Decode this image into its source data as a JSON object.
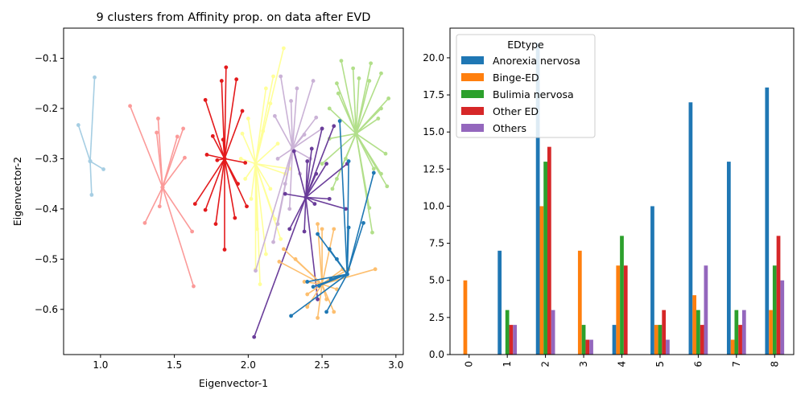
{
  "chart_data": [
    {
      "type": "scatter",
      "title": "9 clusters from Affinity prop. on data after EVD",
      "xlabel": "Eigenvector-1",
      "ylabel": "Eigenvector-2",
      "xlim": [
        0.75,
        3.05
      ],
      "ylim": [
        -0.69,
        -0.04
      ],
      "xticks": [
        1.0,
        1.5,
        2.0,
        2.5,
        3.0
      ],
      "xtick_labels": [
        "1.0",
        "1.5",
        "2.0",
        "2.5",
        "3.0"
      ],
      "yticks": [
        -0.1,
        -0.2,
        -0.3,
        -0.4,
        -0.5,
        -0.6
      ],
      "ytick_labels": [
        "−0.1",
        "−0.2",
        "−0.3",
        "−0.4",
        "−0.5",
        "−0.6"
      ],
      "grid": false,
      "clusters": [
        {
          "color": "#a6cee3",
          "center": [
            0.93,
            -0.305
          ],
          "points": [
            [
              0.85,
              -0.233
            ],
            [
              0.96,
              -0.138
            ],
            [
              1.02,
              -0.321
            ],
            [
              0.94,
              -0.372
            ]
          ]
        },
        {
          "color": "#fb9a99",
          "center": [
            1.42,
            -0.357
          ],
          "points": [
            [
              1.2,
              -0.195
            ],
            [
              1.39,
              -0.22
            ],
            [
              1.38,
              -0.248
            ],
            [
              1.52,
              -0.256
            ],
            [
              1.56,
              -0.24
            ],
            [
              1.57,
              -0.298
            ],
            [
              1.3,
              -0.428
            ],
            [
              1.4,
              -0.395
            ],
            [
              1.62,
              -0.445
            ],
            [
              1.63,
              -0.554
            ]
          ]
        },
        {
          "color": "#e31a1c",
          "center": [
            1.84,
            -0.3
          ],
          "points": [
            [
              1.71,
              -0.183
            ],
            [
              1.82,
              -0.145
            ],
            [
              1.85,
              -0.118
            ],
            [
              1.92,
              -0.142
            ],
            [
              1.96,
              -0.205
            ],
            [
              1.83,
              -0.262
            ],
            [
              1.76,
              -0.255
            ],
            [
              1.72,
              -0.292
            ],
            [
              1.79,
              -0.303
            ],
            [
              1.98,
              -0.308
            ],
            [
              1.64,
              -0.39
            ],
            [
              1.71,
              -0.402
            ],
            [
              1.78,
              -0.43
            ],
            [
              1.84,
              -0.481
            ],
            [
              1.91,
              -0.418
            ],
            [
              1.99,
              -0.395
            ],
            [
              1.93,
              -0.35
            ]
          ]
        },
        {
          "color": "#ffff99",
          "center": [
            2.05,
            -0.31
          ],
          "points": [
            [
              2.24,
              -0.08
            ],
            [
              2.17,
              -0.136
            ],
            [
              2.12,
              -0.16
            ],
            [
              2.15,
              -0.19
            ],
            [
              2.0,
              -0.22
            ],
            [
              2.1,
              -0.245
            ],
            [
              2.2,
              -0.27
            ],
            [
              1.95,
              -0.3
            ],
            [
              1.98,
              -0.34
            ],
            [
              2.25,
              -0.33
            ],
            [
              2.28,
              -0.32
            ],
            [
              2.02,
              -0.38
            ],
            [
              2.15,
              -0.36
            ],
            [
              2.18,
              -0.42
            ],
            [
              2.06,
              -0.44
            ],
            [
              2.12,
              -0.49
            ],
            [
              2.05,
              -0.52
            ],
            [
              2.08,
              -0.55
            ],
            [
              2.22,
              -0.46
            ],
            [
              1.96,
              -0.25
            ]
          ]
        },
        {
          "color": "#cab2d6",
          "center": [
            2.3,
            -0.28
          ],
          "points": [
            [
              2.22,
              -0.136
            ],
            [
              2.33,
              -0.16
            ],
            [
              2.44,
              -0.145
            ],
            [
              2.29,
              -0.185
            ],
            [
              2.46,
              -0.218
            ],
            [
              2.18,
              -0.215
            ],
            [
              2.38,
              -0.252
            ],
            [
              2.5,
              -0.24
            ],
            [
              2.2,
              -0.3
            ],
            [
              2.42,
              -0.3
            ],
            [
              2.25,
              -0.35
            ],
            [
              2.28,
              -0.4
            ],
            [
              2.2,
              -0.43
            ],
            [
              2.17,
              -0.466
            ],
            [
              2.05,
              -0.523
            ],
            [
              2.35,
              -0.33
            ]
          ]
        },
        {
          "color": "#b2df8a",
          "center": [
            2.73,
            -0.25
          ],
          "points": [
            [
              2.63,
              -0.105
            ],
            [
              2.71,
              -0.12
            ],
            [
              2.83,
              -0.11
            ],
            [
              2.82,
              -0.145
            ],
            [
              2.9,
              -0.13
            ],
            [
              2.6,
              -0.15
            ],
            [
              2.61,
              -0.17
            ],
            [
              2.95,
              -0.18
            ],
            [
              2.9,
              -0.2
            ],
            [
              2.55,
              -0.2
            ],
            [
              2.55,
              -0.26
            ],
            [
              2.93,
              -0.29
            ],
            [
              2.88,
              -0.22
            ],
            [
              2.5,
              -0.31
            ],
            [
              2.6,
              -0.34
            ],
            [
              2.85,
              -0.32
            ],
            [
              2.9,
              -0.33
            ],
            [
              2.94,
              -0.355
            ],
            [
              2.66,
              -0.3
            ],
            [
              2.82,
              -0.398
            ],
            [
              2.84,
              -0.447
            ],
            [
              2.57,
              -0.36
            ],
            [
              2.75,
              -0.14
            ]
          ]
        },
        {
          "color": "#6a3d9a",
          "center": [
            2.39,
            -0.377
          ],
          "points": [
            [
              2.31,
              -0.285
            ],
            [
              2.4,
              -0.305
            ],
            [
              2.43,
              -0.28
            ],
            [
              2.5,
              -0.24
            ],
            [
              2.58,
              -0.235
            ],
            [
              2.46,
              -0.33
            ],
            [
              2.53,
              -0.31
            ],
            [
              2.67,
              -0.31
            ],
            [
              2.28,
              -0.44
            ],
            [
              2.38,
              -0.445
            ],
            [
              2.45,
              -0.39
            ],
            [
              2.55,
              -0.38
            ],
            [
              2.66,
              -0.4
            ],
            [
              2.25,
              -0.37
            ],
            [
              2.47,
              -0.58
            ],
            [
              2.04,
              -0.655
            ]
          ]
        },
        {
          "color": "#fdbf6f",
          "center": [
            2.5,
            -0.55
          ],
          "points": [
            [
              2.24,
              -0.48
            ],
            [
              2.47,
              -0.43
            ],
            [
              2.5,
              -0.44
            ],
            [
              2.58,
              -0.44
            ],
            [
              2.32,
              -0.5
            ],
            [
              2.21,
              -0.505
            ],
            [
              2.64,
              -0.52
            ],
            [
              2.68,
              -0.52
            ],
            [
              2.86,
              -0.52
            ],
            [
              2.38,
              -0.545
            ],
            [
              2.4,
              -0.595
            ],
            [
              2.47,
              -0.617
            ],
            [
              2.58,
              -0.605
            ],
            [
              2.53,
              -0.58
            ],
            [
              2.4,
              -0.57
            ],
            [
              2.6,
              -0.56
            ]
          ]
        },
        {
          "color": "#1f78b4",
          "center": [
            2.67,
            -0.53
          ],
          "points": [
            [
              2.62,
              -0.225
            ],
            [
              2.68,
              -0.305
            ],
            [
              2.85,
              -0.328
            ],
            [
              2.78,
              -0.428
            ],
            [
              2.68,
              -0.437
            ],
            [
              2.47,
              -0.45
            ],
            [
              2.55,
              -0.48
            ],
            [
              2.29,
              -0.613
            ],
            [
              2.53,
              -0.605
            ],
            [
              2.44,
              -0.555
            ],
            [
              2.4,
              -0.545
            ],
            [
              2.48,
              -0.553
            ],
            [
              2.56,
              -0.54
            ],
            [
              2.6,
              -0.5
            ]
          ]
        }
      ]
    },
    {
      "type": "bar",
      "categories": [
        "0",
        "1",
        "2",
        "3",
        "4",
        "5",
        "6",
        "7",
        "8"
      ],
      "legend_title": "EDtype",
      "legend_placement": "top-left",
      "ylim": [
        0,
        22
      ],
      "yticks": [
        0.0,
        2.5,
        5.0,
        7.5,
        10.0,
        12.5,
        15.0,
        17.5,
        20.0
      ],
      "ytick_labels": [
        "0.0",
        "2.5",
        "5.0",
        "7.5",
        "10.0",
        "12.5",
        "15.0",
        "17.5",
        "20.0"
      ],
      "grid": false,
      "series": [
        {
          "name": "Anorexia nervosa",
          "color": "#1f77b4",
          "values": [
            0,
            7,
            21,
            0,
            2,
            10,
            17,
            13,
            18
          ]
        },
        {
          "name": "Binge-ED",
          "color": "#ff7f0e",
          "values": [
            5,
            0,
            10,
            7,
            6,
            2,
            4,
            1,
            3
          ]
        },
        {
          "name": "Bulimia nervosa",
          "color": "#2ca02c",
          "values": [
            0,
            3,
            13,
            2,
            8,
            2,
            3,
            3,
            6
          ]
        },
        {
          "name": "Other ED",
          "color": "#d62728",
          "values": [
            0,
            2,
            14,
            1,
            6,
            3,
            2,
            2,
            8
          ]
        },
        {
          "name": "Others",
          "color": "#9467bd",
          "values": [
            0,
            2,
            3,
            1,
            0,
            1,
            6,
            3,
            5
          ]
        }
      ]
    }
  ]
}
